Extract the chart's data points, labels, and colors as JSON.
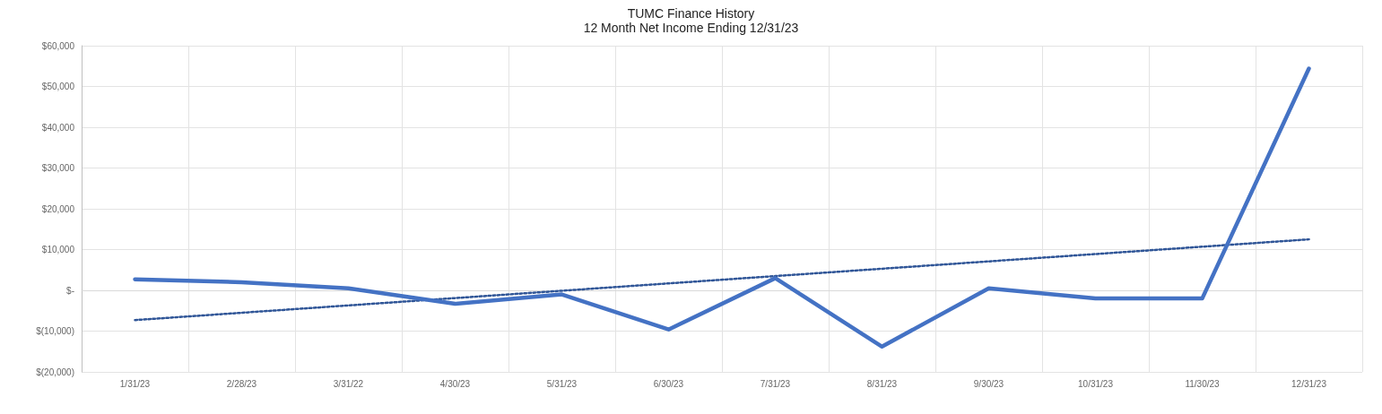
{
  "chart_data": {
    "type": "line",
    "title": "TUMC Finance History",
    "subtitle": "12 Month Net Income Ending 12/31/23",
    "categories": [
      "1/31/23",
      "2/28/23",
      "3/31/22",
      "4/30/23",
      "5/31/23",
      "6/30/23",
      "7/31/23",
      "8/31/23",
      "9/30/23",
      "10/31/23",
      "11/30/23",
      "12/31/23"
    ],
    "series": [
      {
        "color": "#4472c4",
        "line_style": "solid",
        "values": [
          2700,
          2000,
          500,
          -3300,
          -1000,
          -9600,
          3000,
          -13800,
          500,
          -2000,
          -2000,
          54400
        ]
      },
      {
        "color": "#2f5597",
        "line_style": "dotted",
        "values": [
          -7300,
          -5500,
          -3700,
          -1900,
          -100,
          1700,
          3500,
          5300,
          7100,
          8900,
          10700,
          12500
        ]
      }
    ],
    "ylim": [
      -20000,
      60000
    ],
    "yticks": [
      {
        "value": -20000,
        "label": "$(20,000)"
      },
      {
        "value": -10000,
        "label": "$(10,000)"
      },
      {
        "value": 0,
        "label": "$-"
      },
      {
        "value": 10000,
        "label": "$10,000"
      },
      {
        "value": 20000,
        "label": "$20,000"
      },
      {
        "value": 30000,
        "label": "$30,000"
      },
      {
        "value": 40000,
        "label": "$40,000"
      },
      {
        "value": 50000,
        "label": "$50,000"
      },
      {
        "value": 60000,
        "label": "$60,000"
      }
    ],
    "grid": true,
    "marker": "none"
  }
}
